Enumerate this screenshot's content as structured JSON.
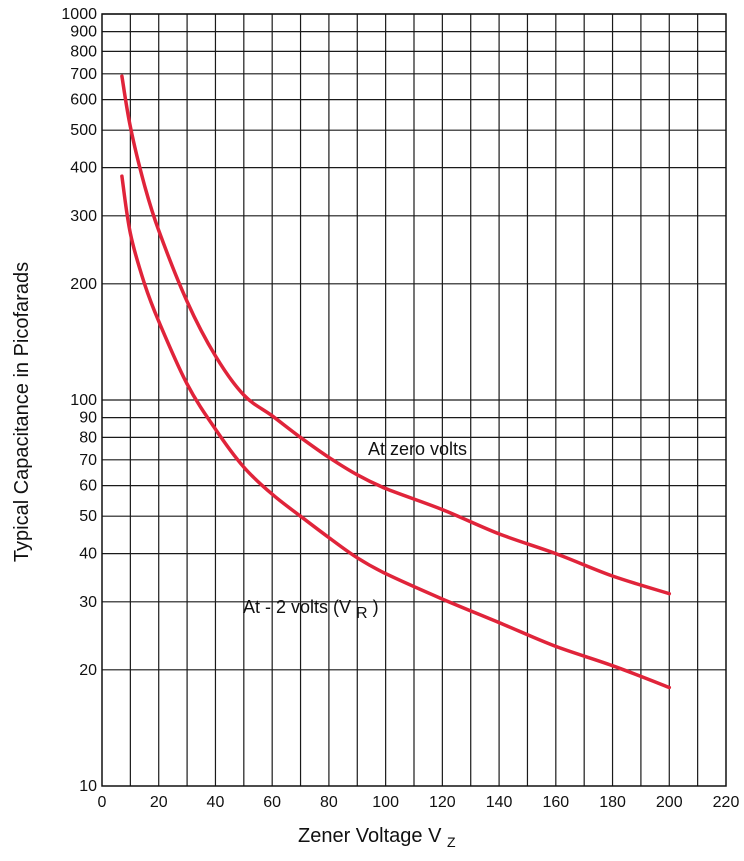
{
  "chart_data": {
    "type": "line",
    "ylabel": "Typical Capacitance in Picofarads",
    "xlabel": "Zener Voltage V",
    "xlabel_subscript": "Z",
    "x_ticks": [
      0,
      20,
      40,
      60,
      80,
      100,
      120,
      140,
      160,
      180,
      200,
      220
    ],
    "xlim": [
      0,
      220
    ],
    "x_grid_step": 10,
    "y_scale": "log",
    "ylim": [
      10,
      1000
    ],
    "y_ticks": [
      10,
      20,
      30,
      40,
      50,
      60,
      70,
      80,
      90,
      100,
      200,
      300,
      400,
      500,
      600,
      700,
      800,
      900,
      1000
    ],
    "y_grid": [
      20,
      30,
      40,
      50,
      60,
      70,
      80,
      90,
      100,
      200,
      300,
      400,
      500,
      600,
      700,
      800,
      900,
      1000
    ],
    "grid": true,
    "line_color": "#e0243a",
    "series": [
      {
        "name": "At zero volts",
        "x": [
          7,
          10,
          15,
          20,
          30,
          40,
          50,
          60,
          70,
          80,
          90,
          100,
          120,
          140,
          160,
          180,
          200
        ],
        "y": [
          690,
          510,
          360,
          275,
          180,
          130,
          103,
          91,
          80,
          71,
          64,
          59,
          52,
          45,
          40,
          35,
          31.5
        ]
      },
      {
        "name": "At - 2 volts (V",
        "name_subscript": "R",
        "name_suffix": ")",
        "x": [
          7,
          10,
          15,
          20,
          30,
          40,
          50,
          60,
          70,
          80,
          90,
          100,
          120,
          140,
          160,
          180,
          200
        ],
        "y": [
          380,
          270,
          200,
          160,
          110,
          84,
          67,
          57,
          50,
          44,
          39,
          35.5,
          30.5,
          26.5,
          23,
          20.5,
          18
        ]
      }
    ]
  }
}
